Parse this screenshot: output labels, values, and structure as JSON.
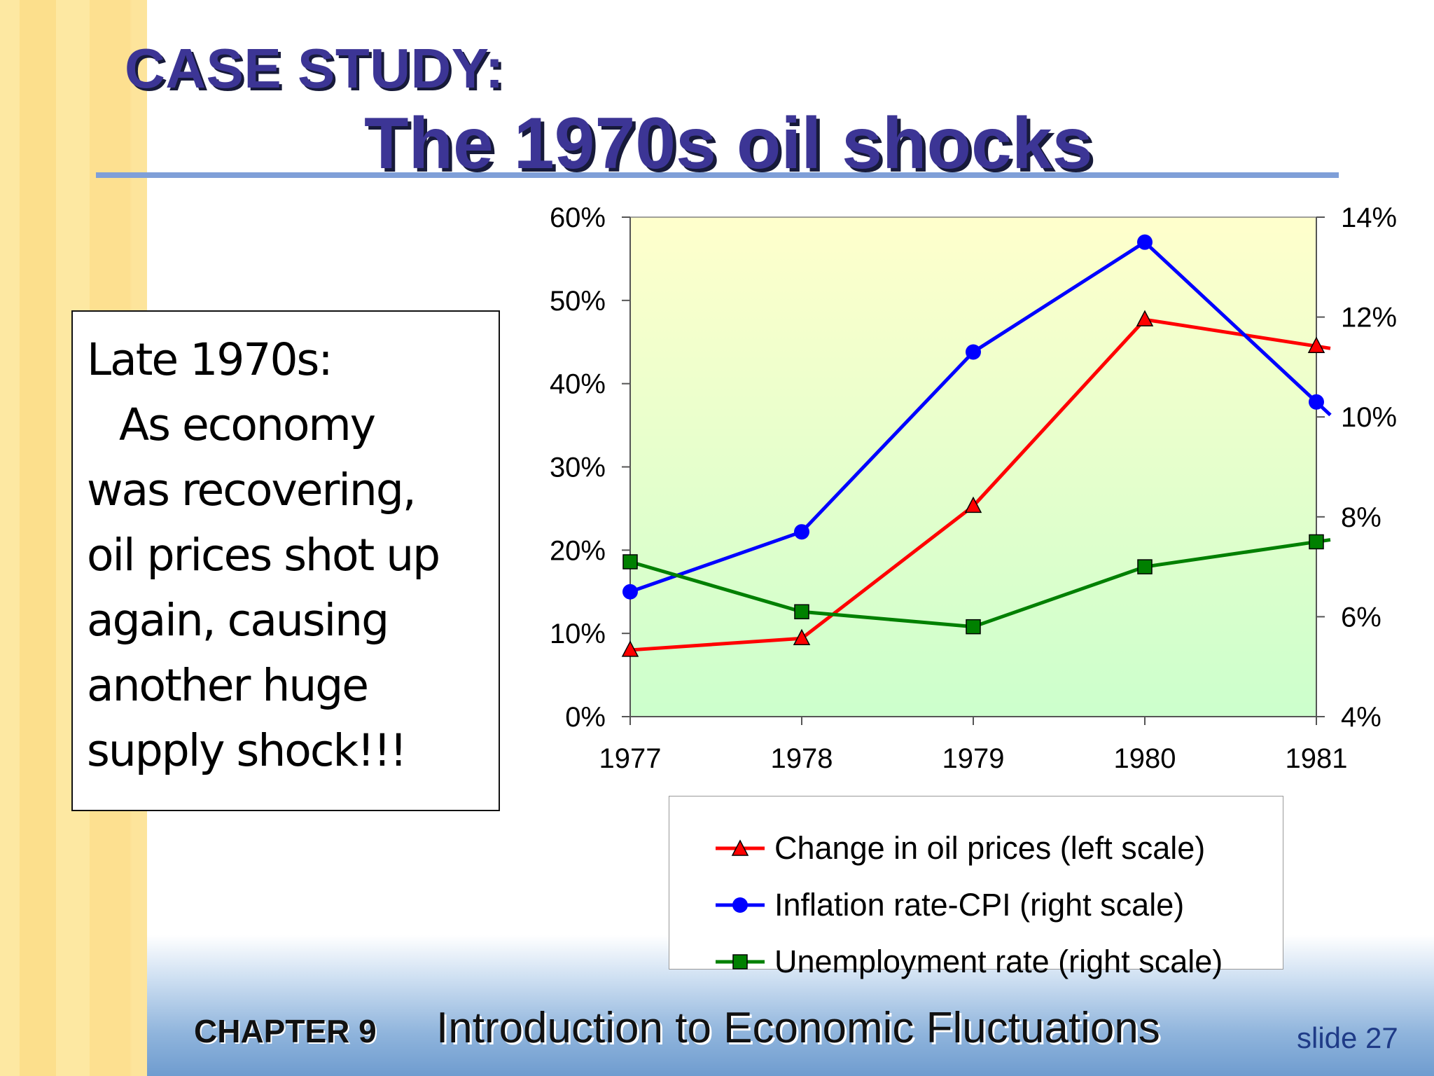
{
  "slide": {
    "title_line1": "CASE STUDY:",
    "title_line2": "The 1970s oil shocks"
  },
  "textbox": {
    "heading": "Late 1970s:",
    "body_lines": [
      "As economy",
      "was recovering,",
      "oil prices shot up",
      "again, causing",
      "another huge",
      "supply shock!!!"
    ]
  },
  "footer": {
    "chapter": "CHAPTER 9",
    "title": "Introduction to Economic Fluctuations",
    "slide_number": "slide 27"
  },
  "colors": {
    "title": "#3c3595",
    "oil": "#ff0000",
    "inflation": "#0000ff",
    "unemployment": "#008000",
    "plot_top": "#ffffcc",
    "plot_bottom": "#ccffcc"
  },
  "chart_data": {
    "type": "line",
    "x": [
      "1977",
      "1978",
      "1979",
      "1980",
      "1981"
    ],
    "left_axis": {
      "ylim": [
        0,
        60
      ],
      "ticks": [
        "0%",
        "10%",
        "20%",
        "30%",
        "40%",
        "50%",
        "60%"
      ]
    },
    "right_axis": {
      "ylim": [
        4,
        14
      ],
      "ticks": [
        "4%",
        "6%",
        "8%",
        "10%",
        "12%",
        "14%"
      ]
    },
    "series": [
      {
        "name": "Change in oil prices (left scale)",
        "axis": "left",
        "marker": "triangle",
        "color": "#ff0000",
        "values": [
          8,
          9.4,
          25.3,
          47.7,
          44.5
        ]
      },
      {
        "name": "Inflation rate-CPI (right scale)",
        "axis": "right",
        "marker": "circle",
        "color": "#0000ff",
        "values": [
          6.5,
          7.7,
          11.3,
          13.5,
          10.3
        ]
      },
      {
        "name": "Unemployment rate (right scale)",
        "axis": "right",
        "marker": "square",
        "color": "#008000",
        "values": [
          7.1,
          6.1,
          5.8,
          7.0,
          7.5
        ]
      }
    ],
    "grid": false,
    "legend_position": "bottom"
  }
}
